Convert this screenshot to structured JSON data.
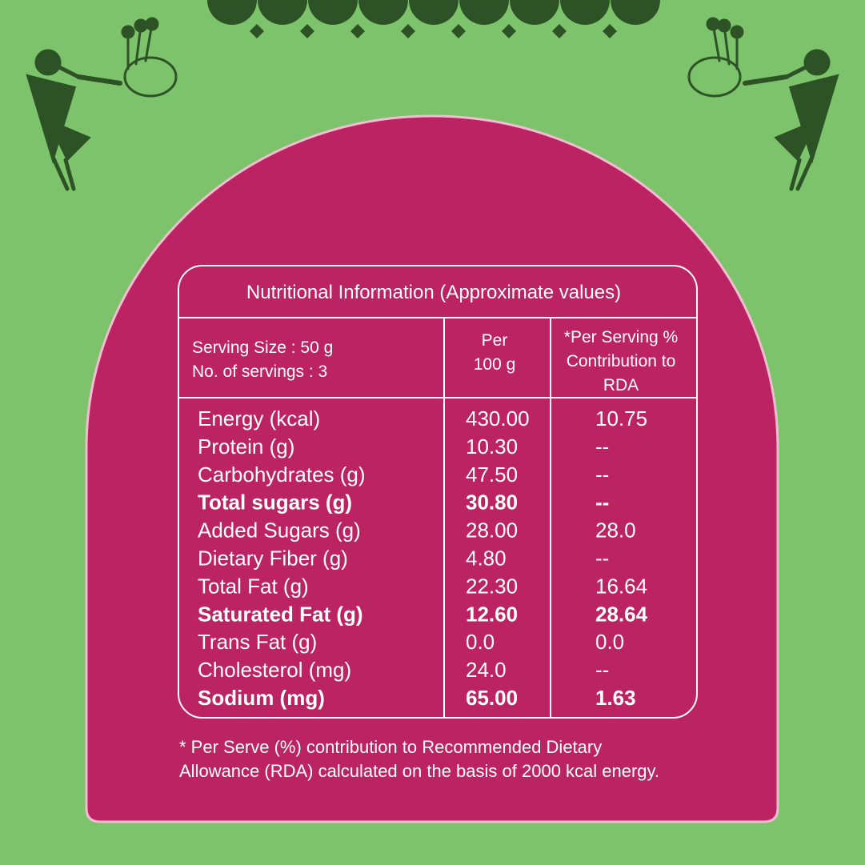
{
  "table": {
    "title": "Nutritional Information (Approximate values)",
    "header": {
      "serving": [
        "Serving Size : 50 g",
        "No. of servings : 3"
      ],
      "per100": [
        "Per",
        "100 g"
      ],
      "rda": [
        "*Per Serving %",
        "Contribution to",
        "RDA"
      ]
    },
    "rows": [
      {
        "label": "Energy (kcal)",
        "per100": "430.00",
        "rda": "10.75",
        "bold": false
      },
      {
        "label": "Protein (g)",
        "per100": "10.30",
        "rda": "--",
        "bold": false
      },
      {
        "label": "Carbohydrates (g)",
        "per100": "47.50",
        "rda": "--",
        "bold": false
      },
      {
        "label": "Total sugars (g)",
        "per100": "30.80",
        "rda": "--",
        "bold": true
      },
      {
        "label": "Added Sugars (g)",
        "per100": "28.00",
        "rda": "28.0",
        "bold": false
      },
      {
        "label": "Dietary Fiber (g)",
        "per100": "4.80",
        "rda": "--",
        "bold": false
      },
      {
        "label": "Total Fat (g)",
        "per100": "22.30",
        "rda": "16.64",
        "bold": false
      },
      {
        "label": "Saturated Fat (g)",
        "per100": "12.60",
        "rda": "28.64",
        "bold": true
      },
      {
        "label": "Trans Fat (g)",
        "per100": "0.0",
        "rda": "0.0",
        "bold": false
      },
      {
        "label": "Cholesterol (mg)",
        "per100": "24.0",
        "rda": "--",
        "bold": false
      },
      {
        "label": "Sodium (mg)",
        "per100": "65.00",
        "rda": "1.63",
        "bold": true
      }
    ]
  },
  "footnote": [
    "* Per Serve (%) contribution to Recommended Dietary",
    "Allowance (RDA) calculated on the basis of 2000 kcal energy."
  ]
}
